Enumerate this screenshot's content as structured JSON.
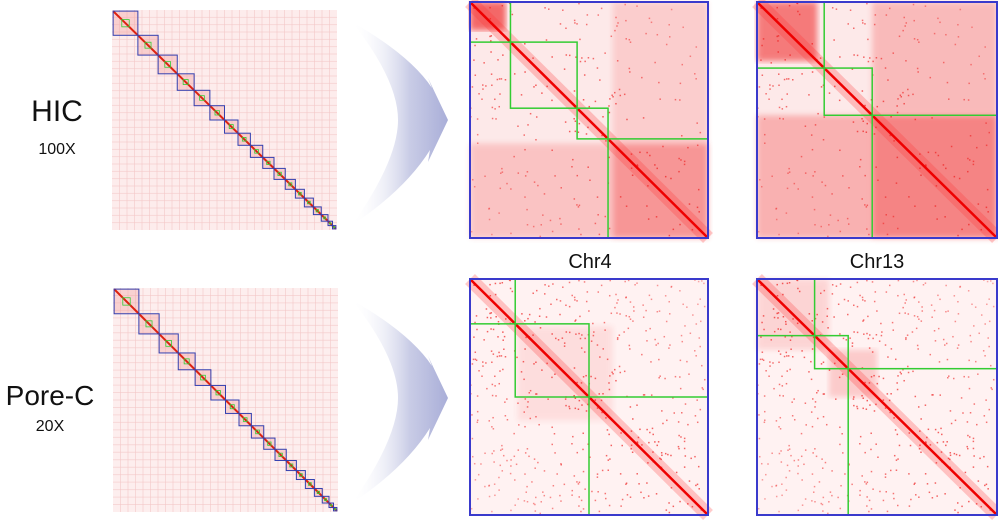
{
  "rows": [
    {
      "label": "HIC",
      "depth": "100X"
    },
    {
      "label": "Pore-C",
      "depth": "20X"
    }
  ],
  "columns": [
    "Chr4",
    "Chr13"
  ]
}
